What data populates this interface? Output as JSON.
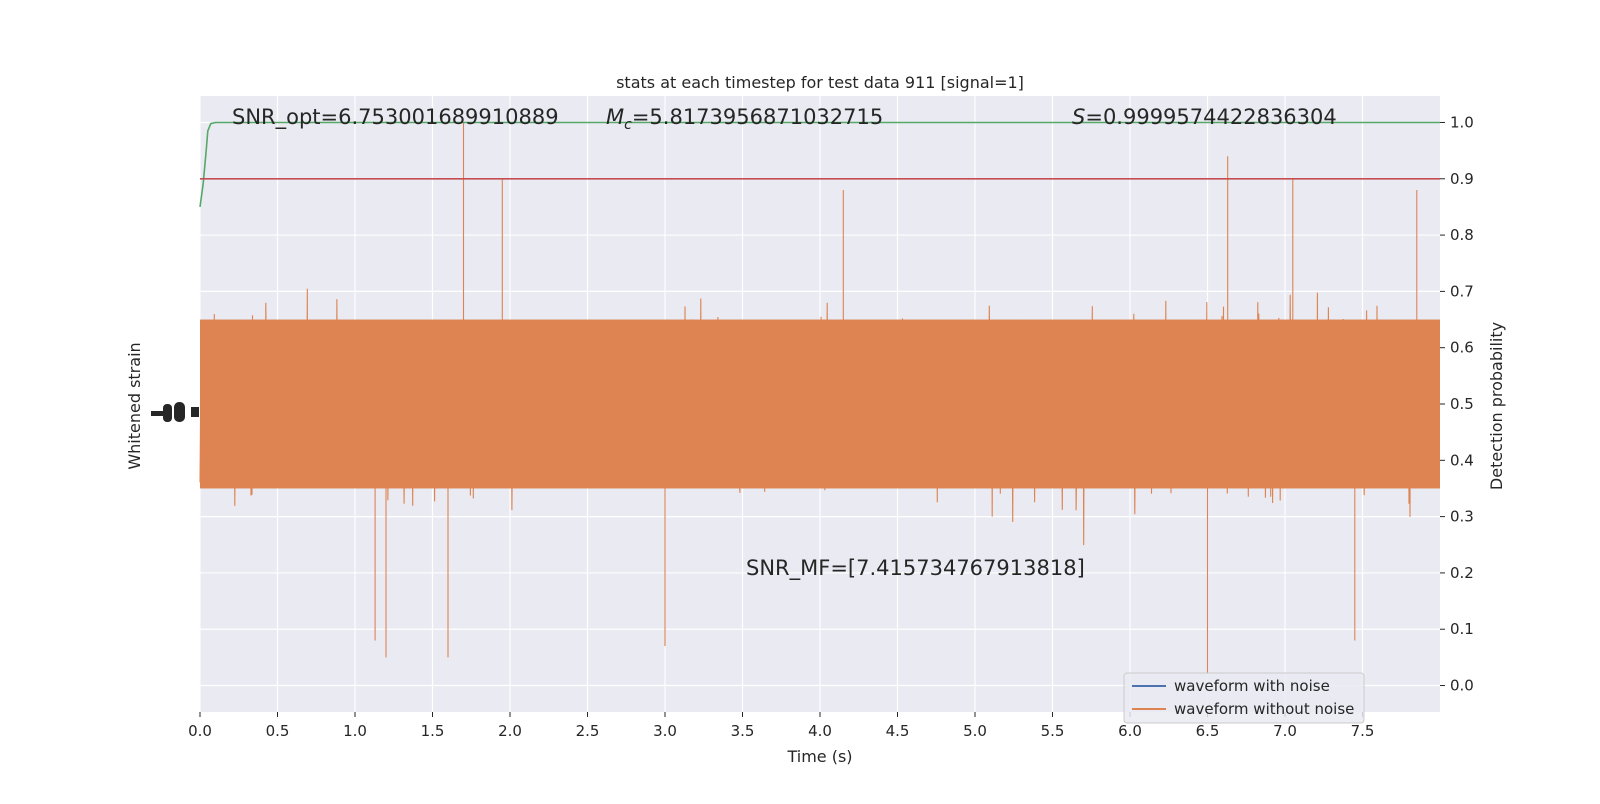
{
  "chart_data": {
    "type": "line",
    "title": "stats at each timestep for test data 911 [signal=1]",
    "xlabel": "Time (s)",
    "ylabel_left": "Whitened strain",
    "ylabel_right": "Detection probability",
    "xlim": [
      0,
      8
    ],
    "ylim_right": [
      -0.047,
      1.047
    ],
    "x_ticks": [
      0.0,
      0.5,
      1.0,
      1.5,
      2.0,
      2.5,
      3.0,
      3.5,
      4.0,
      4.5,
      5.0,
      5.5,
      6.0,
      6.5,
      7.0,
      7.5
    ],
    "x_tick_labels": [
      "0.0",
      "0.5",
      "1.0",
      "1.5",
      "2.0",
      "2.5",
      "3.0",
      "3.5",
      "4.0",
      "4.5",
      "5.0",
      "5.5",
      "6.0",
      "6.5",
      "7.0",
      "7.5"
    ],
    "y_ticks_right": [
      0.0,
      0.1,
      0.2,
      0.3,
      0.4,
      0.5,
      0.6,
      0.7,
      0.8,
      0.9,
      1.0
    ],
    "y_tick_labels_right": [
      "0.0",
      "0.1",
      "0.2",
      "0.3",
      "0.4",
      "0.5",
      "0.6",
      "0.7",
      "0.8",
      "0.9",
      "1.0"
    ],
    "grid": true,
    "legend_position": "lower-right",
    "series": [
      {
        "name": "waveform with noise",
        "color": "#4c72b0",
        "axis": "left",
        "note_hidden": "fully covered by the orange trace"
      },
      {
        "name": "waveform without noise",
        "color": "#dd8452",
        "axis": "left",
        "center": 0.5,
        "envelope_low_typical": 0.3,
        "envelope_high_typical": 0.7,
        "spikes_max": [
          [
            1.7,
            1.0
          ],
          [
            6.63,
            0.94
          ],
          [
            7.05,
            0.9
          ],
          [
            1.95,
            0.9
          ],
          [
            4.15,
            0.88
          ],
          [
            7.85,
            0.88
          ]
        ],
        "spikes_min": [
          [
            6.5,
            0.02
          ],
          [
            1.2,
            0.05
          ],
          [
            1.6,
            0.05
          ],
          [
            3.0,
            0.07
          ],
          [
            1.13,
            0.08
          ],
          [
            7.45,
            0.08
          ]
        ]
      },
      {
        "name": "",
        "color": "#55a868",
        "axis": "right",
        "x": [
          0.0,
          0.02,
          0.04,
          0.05,
          0.07,
          0.1,
          0.2,
          8.0
        ],
        "values": [
          0.85,
          0.89,
          0.95,
          0.985,
          0.998,
          1.0,
          1.0,
          1.0
        ]
      },
      {
        "name": "",
        "color": "#c44e52",
        "axis": "right",
        "x": [
          0.0,
          8.0
        ],
        "values": [
          0.9,
          0.9
        ]
      }
    ],
    "annotations": {
      "snr_opt": "SNR_opt=6.753001689910889",
      "mc_symbol": "M",
      "mc_subscript": "c",
      "mc_value": "=5.8173956871032715",
      "s_symbol": "S",
      "s_value": "=0.9999574422836304",
      "snr_mf": "SNR_MF=[7.415734767913818]"
    },
    "colors": {
      "plot_background": "#eaeaf2",
      "grid": "#ffffff",
      "text": "#262626"
    }
  }
}
